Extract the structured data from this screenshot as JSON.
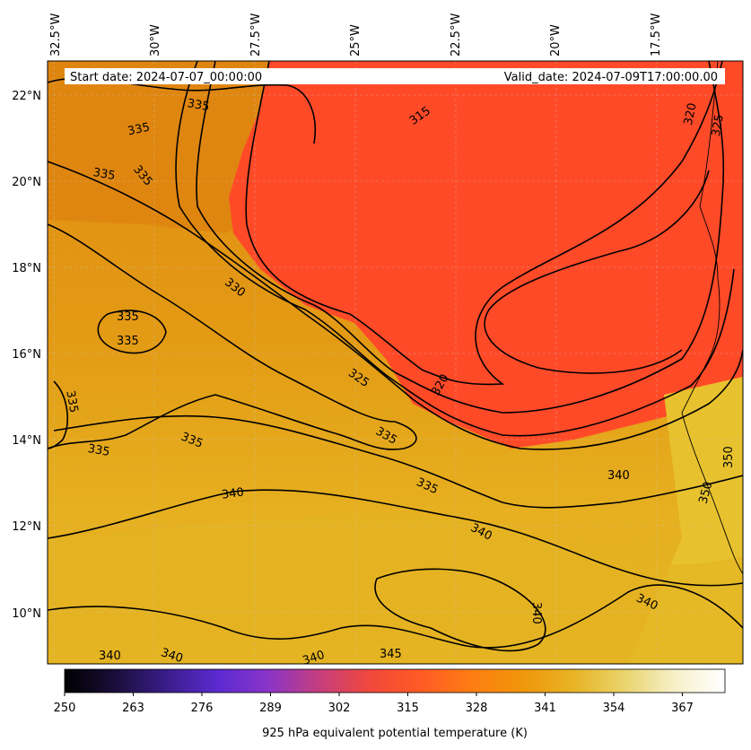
{
  "header": {
    "start_date": "Start date: 2024-07-07_00:00:00",
    "valid_date": "Valid_date: 2024-07-09T17:00:00.00"
  },
  "longitude_labels": [
    "32.5°W",
    "30°W",
    "27.5°W",
    "25°W",
    "22.5°W",
    "20°W",
    "17.5°W"
  ],
  "latitude_labels": [
    "22°N",
    "20°N",
    "18°N",
    "16°N",
    "14°N",
    "12°N",
    "10°N"
  ],
  "contour_labels": [
    "335",
    "335",
    "335",
    "335",
    "335",
    "335",
    "335",
    "335",
    "335",
    "335",
    "335",
    "330",
    "325",
    "320",
    "315",
    "320",
    "325",
    "340",
    "340",
    "340",
    "340",
    "340",
    "340",
    "340",
    "340",
    "345",
    "350",
    "350"
  ],
  "colorbar": {
    "min": 250,
    "max": 375,
    "ticks": [
      "250",
      "263",
      "276",
      "289",
      "302",
      "315",
      "328",
      "341",
      "354",
      "367"
    ],
    "label": "925 hPa equivalent potential temperature (K)",
    "colors": [
      "#000000",
      "#1a0e3a",
      "#3a1d8a",
      "#5b2ad0",
      "#8a34c8",
      "#c53e7e",
      "#f0483c",
      "#ff5a25",
      "#ff7d14",
      "#f0960a",
      "#e8b324",
      "#e9d36a",
      "#f6f0c8",
      "#ffffff"
    ]
  },
  "map": {
    "extent_lon": [
      -32.5,
      -15.0
    ],
    "extent_lat": [
      8.8,
      22.8
    ],
    "field_colors": {
      "warm": "#ff4a28",
      "mid": "#e89010",
      "high": "#e6b824",
      "highest": "#ecd25a"
    }
  }
}
